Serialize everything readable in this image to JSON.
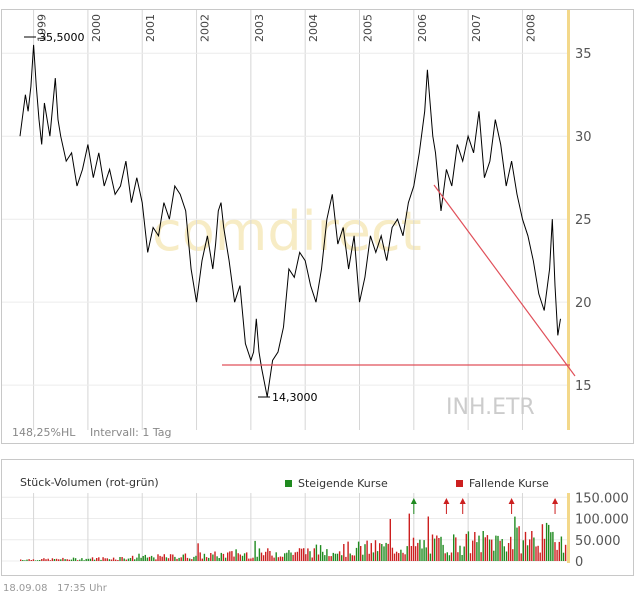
{
  "chart_data": [
    {
      "type": "line",
      "watermark": "comdirect",
      "symbol": "INH.ETR",
      "info_left": "148,25%HL",
      "info_interval": "Intervall: 1 Tag",
      "x_years": [
        "1999",
        "2000",
        "2001",
        "2002",
        "2003",
        "2004",
        "2005",
        "2006",
        "2007",
        "2008"
      ],
      "yticks": [
        15,
        20,
        25,
        30,
        35
      ],
      "ylim": [
        12.3,
        37.0
      ],
      "xlim": [
        1998.75,
        2008.82
      ],
      "series": [
        {
          "x": [
            1998.75,
            1998.85,
            1998.9,
            1998.95,
            1999.0,
            1999.05,
            1999.1,
            1999.15,
            1999.2,
            1999.3,
            1999.4,
            1999.45,
            1999.5,
            1999.6,
            1999.7,
            1999.8,
            1999.9,
            2000.0,
            2000.1,
            2000.2,
            2000.3,
            2000.4,
            2000.5,
            2000.6,
            2000.7,
            2000.8,
            2000.9,
            2001.0,
            2001.1,
            2001.2,
            2001.3,
            2001.4,
            2001.5,
            2001.6,
            2001.7,
            2001.8,
            2001.9,
            2002.0,
            2002.1,
            2002.2,
            2002.3,
            2002.35,
            2002.4,
            2002.45,
            2002.5,
            2002.6,
            2002.7,
            2002.8,
            2002.9,
            2003.0,
            2003.05,
            2003.1,
            2003.15,
            2003.2,
            2003.3,
            2003.4,
            2003.5,
            2003.6,
            2003.7,
            2003.8,
            2003.9,
            2004.0,
            2004.1,
            2004.2,
            2004.3,
            2004.4,
            2004.5,
            2004.6,
            2004.7,
            2004.8,
            2004.9,
            2005.0,
            2005.1,
            2005.2,
            2005.3,
            2005.4,
            2005.5,
            2005.6,
            2005.7,
            2005.8,
            2005.9,
            2006.0,
            2006.1,
            2006.2,
            2006.25,
            2006.3,
            2006.35,
            2006.4,
            2006.5,
            2006.6,
            2006.7,
            2006.8,
            2006.9,
            2007.0,
            2007.1,
            2007.2,
            2007.3,
            2007.4,
            2007.5,
            2007.6,
            2007.7,
            2007.8,
            2007.9,
            2008.0,
            2008.1,
            2008.2,
            2008.3,
            2008.4,
            2008.5,
            2008.55,
            2008.6,
            2008.65,
            2008.7
          ],
          "y": [
            30.0,
            32.5,
            31.5,
            33.0,
            35.5,
            33.0,
            31.0,
            29.5,
            32.0,
            30.0,
            33.5,
            31.0,
            30.0,
            28.5,
            29.0,
            27.0,
            28.0,
            29.5,
            27.5,
            29.0,
            27.0,
            28.0,
            26.5,
            27.0,
            28.5,
            26.0,
            27.5,
            26.0,
            23.0,
            24.5,
            24.0,
            26.0,
            25.0,
            27.0,
            26.5,
            25.5,
            22.0,
            20.0,
            22.5,
            24.0,
            22.0,
            23.5,
            25.5,
            26.0,
            24.5,
            22.5,
            20.0,
            21.0,
            17.5,
            16.5,
            17.0,
            19.0,
            17.0,
            16.0,
            14.3,
            16.5,
            17.0,
            18.5,
            22.0,
            21.5,
            23.0,
            22.5,
            21.0,
            20.0,
            22.0,
            25.0,
            26.5,
            23.5,
            24.5,
            22.0,
            24.0,
            20.0,
            21.5,
            24.0,
            23.0,
            24.0,
            22.5,
            24.5,
            25.0,
            24.0,
            26.0,
            27.0,
            29.0,
            31.5,
            34.0,
            32.0,
            30.0,
            29.0,
            25.5,
            28.0,
            27.0,
            29.5,
            28.5,
            30.0,
            29.0,
            31.5,
            27.5,
            28.5,
            31.0,
            29.5,
            27.0,
            28.5,
            26.5,
            25.0,
            24.0,
            22.5,
            20.5,
            19.5,
            22.0,
            25.0,
            21.0,
            18.0,
            19.0
          ]
        }
      ],
      "annotations": [
        "35,5000",
        "14,3000"
      ]
    },
    {
      "type": "bar",
      "title": "Stück-Volumen (rot-grün)",
      "legend": [
        "Steigende Kurse",
        "Fallende Kurse"
      ],
      "colors": {
        "up": "#1f8a1f",
        "down": "#cc1f1f",
        "price_line": "#000000",
        "trend_line": "#e0505a",
        "year_grid": "#cccccc",
        "axis_highlight": "#f3d88a",
        "watermark": "#f7ecc5"
      },
      "yticks": [
        "0",
        "50.000",
        "100.000",
        "150.000"
      ],
      "ylim": [
        0,
        160000
      ],
      "n_bars": 260,
      "peak_markers_x": [
        2006.0,
        2006.6,
        2006.9,
        2007.8,
        2008.6
      ]
    }
  ],
  "footer": {
    "date": "18.09.08",
    "time": "17:35 Uhr"
  }
}
